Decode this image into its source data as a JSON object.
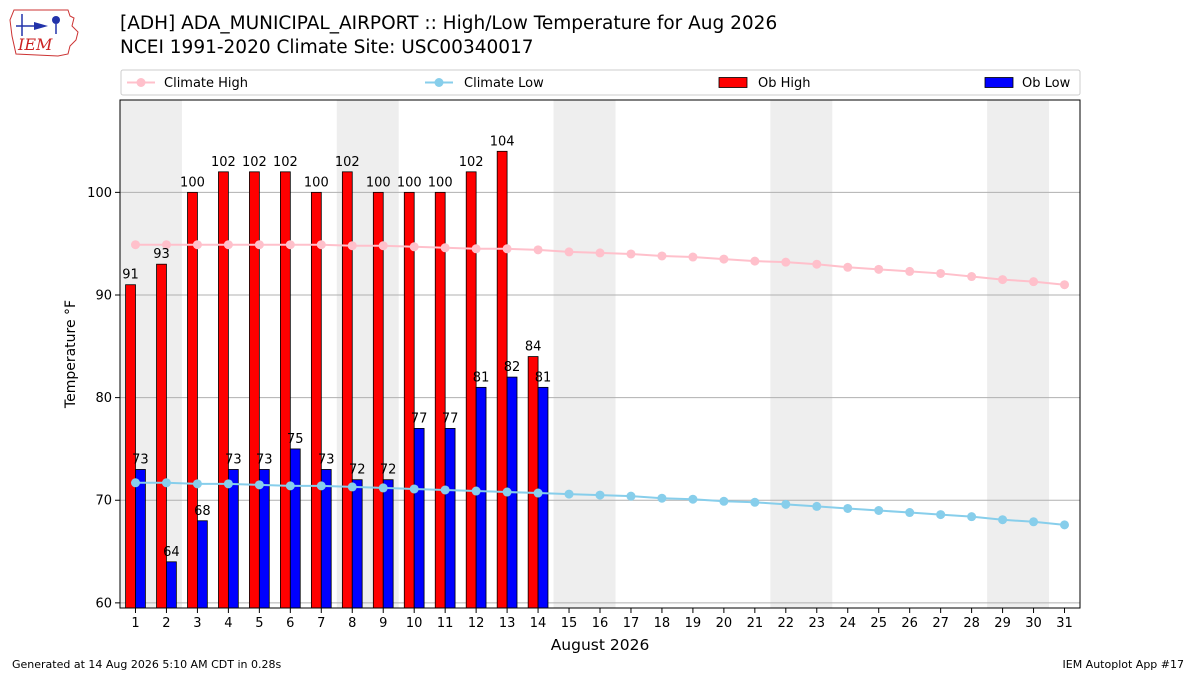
{
  "header": {
    "title_line1": "[ADH] ADA_MUNICIPAL_AIRPORT :: High/Low Temperature for Aug 2026",
    "title_line2": "NCEI 1991-2020 Climate Site: USC00340017",
    "logo_text": "IEM"
  },
  "footer": {
    "generated": "Generated at 14 Aug 2026 5:10 AM CDT in 0.28s",
    "app": "IEM Autoplot App #17"
  },
  "colors": {
    "climate_high": "#ffc0cb",
    "climate_low": "#87ceeb",
    "ob_high": "#ff0000",
    "ob_low": "#0000ff",
    "weekend_shade": "#eeeeee",
    "grid": "#b0b0b0"
  },
  "chart_data": {
    "type": "bar",
    "xlabel": "August 2026",
    "ylabel": "Temperature °F",
    "ylim": [
      59.5,
      109
    ],
    "xlim": [
      0.5,
      31.5
    ],
    "yticks": [
      60,
      70,
      80,
      90,
      100
    ],
    "days": [
      1,
      2,
      3,
      4,
      5,
      6,
      7,
      8,
      9,
      10,
      11,
      12,
      13,
      14,
      15,
      16,
      17,
      18,
      19,
      20,
      21,
      22,
      23,
      24,
      25,
      26,
      27,
      28,
      29,
      30,
      31
    ],
    "weekend_spans": [
      [
        0.5,
        2.5
      ],
      [
        7.5,
        9.5
      ],
      [
        14.5,
        16.5
      ],
      [
        21.5,
        23.5
      ],
      [
        28.5,
        30.5
      ]
    ],
    "grid": "y",
    "legend": "top",
    "legend_entries": [
      "Climate High",
      "Climate Low",
      "Ob High",
      "Ob Low"
    ],
    "series": [
      {
        "name": "Climate High",
        "kind": "line",
        "values": [
          94.9,
          94.9,
          94.9,
          94.9,
          94.9,
          94.9,
          94.9,
          94.8,
          94.8,
          94.7,
          94.6,
          94.5,
          94.5,
          94.4,
          94.2,
          94.1,
          94.0,
          93.8,
          93.7,
          93.5,
          93.3,
          93.2,
          93.0,
          92.7,
          92.5,
          92.3,
          92.1,
          91.8,
          91.5,
          91.3,
          91.0
        ]
      },
      {
        "name": "Climate Low",
        "kind": "line",
        "values": [
          71.7,
          71.7,
          71.6,
          71.6,
          71.5,
          71.4,
          71.4,
          71.3,
          71.2,
          71.1,
          71.0,
          70.9,
          70.8,
          70.7,
          70.6,
          70.5,
          70.4,
          70.2,
          70.1,
          69.9,
          69.8,
          69.6,
          69.4,
          69.2,
          69.0,
          68.8,
          68.6,
          68.4,
          68.1,
          67.9,
          67.6
        ]
      },
      {
        "name": "Ob High",
        "kind": "bar",
        "values": [
          91,
          93,
          100,
          102,
          102,
          102,
          100,
          102,
          100,
          100,
          100,
          102,
          104,
          84
        ],
        "labels": [
          "91",
          "93",
          "100",
          "102",
          "102",
          "102",
          "100",
          "102",
          "100",
          "100",
          "100",
          "102",
          "104",
          "84"
        ]
      },
      {
        "name": "Ob Low",
        "kind": "bar",
        "values": [
          73,
          64,
          68,
          73,
          73,
          75,
          73,
          72,
          72,
          77,
          77,
          81,
          82,
          81
        ],
        "labels": [
          "73",
          "64",
          "68",
          "73",
          "73",
          "75",
          "73",
          "72",
          "72",
          "77",
          "77",
          "81",
          "82",
          "81"
        ]
      }
    ]
  }
}
